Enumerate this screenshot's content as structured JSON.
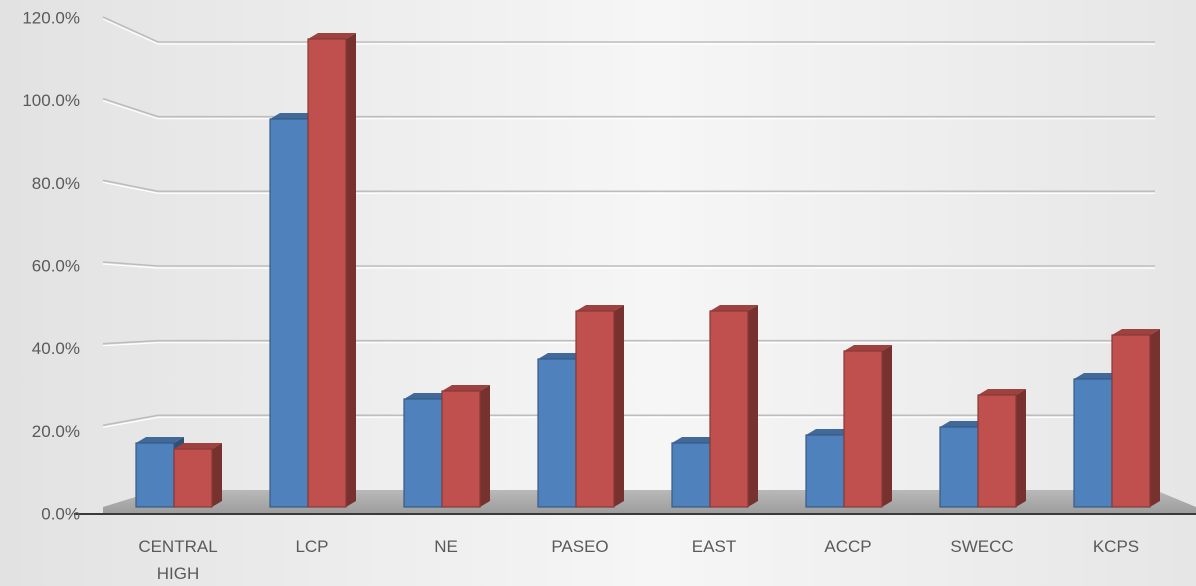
{
  "chart_data": {
    "type": "bar",
    "title": "",
    "xlabel": "",
    "ylabel": "",
    "categories": [
      "CENTRAL HIGH",
      "LCP",
      "NE",
      "PASEO",
      "EAST",
      "ACCP",
      "SWECC",
      "KCPS"
    ],
    "series": [
      {
        "color": "#4f81bd",
        "values": [
          16.0,
          97.0,
          27.0,
          37.0,
          16.0,
          18.0,
          20.0,
          32.0
        ]
      },
      {
        "color": "#c0504d",
        "values": [
          14.5,
          117.0,
          29.0,
          49.0,
          49.0,
          39.0,
          28.0,
          43.0
        ]
      }
    ],
    "yticks": [
      "0.0%",
      "20.0%",
      "40.0%",
      "60.0%",
      "80.0%",
      "100.0%",
      "120.0%"
    ],
    "ylim": [
      0,
      120
    ],
    "grid": true,
    "legend": "none"
  }
}
